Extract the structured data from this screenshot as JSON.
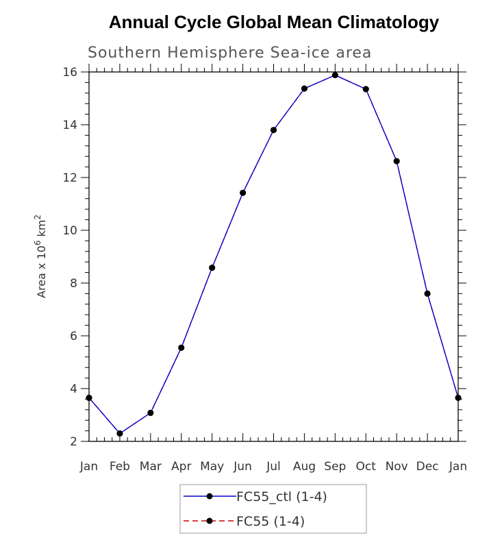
{
  "chart_data": {
    "type": "line",
    "title": "Annual Cycle Global Mean Climatology",
    "subtitle": "Southern Hemisphere Sea-ice area",
    "ylabel": {
      "base": "Area x 10",
      "sup1": "6",
      "mid": " km",
      "sup2": "2"
    },
    "xlabel": "",
    "categories": [
      "Jan",
      "Feb",
      "Mar",
      "Apr",
      "May",
      "Jun",
      "Jul",
      "Aug",
      "Sep",
      "Oct",
      "Nov",
      "Dec",
      "Jan"
    ],
    "ylim": [
      2,
      16
    ],
    "yticks": [
      2,
      4,
      6,
      8,
      10,
      12,
      14,
      16
    ],
    "series": [
      {
        "name": "FC55_ctl (1-4)",
        "color": "#0000cc",
        "dash": "solid",
        "values": [
          3.65,
          2.3,
          3.08,
          5.55,
          8.58,
          11.42,
          13.8,
          15.37,
          15.88,
          15.35,
          12.62,
          7.6,
          3.65
        ]
      },
      {
        "name": "FC55 (1-4)",
        "color": "#cc0000",
        "dash": "dashed",
        "values": [
          3.65,
          2.3,
          3.08,
          5.55,
          8.58,
          11.42,
          13.8,
          15.37,
          15.88,
          15.35,
          12.62,
          7.6,
          3.65
        ]
      }
    ],
    "marker_color": "#000000",
    "legend_position": "bottom-center",
    "grid": false
  }
}
